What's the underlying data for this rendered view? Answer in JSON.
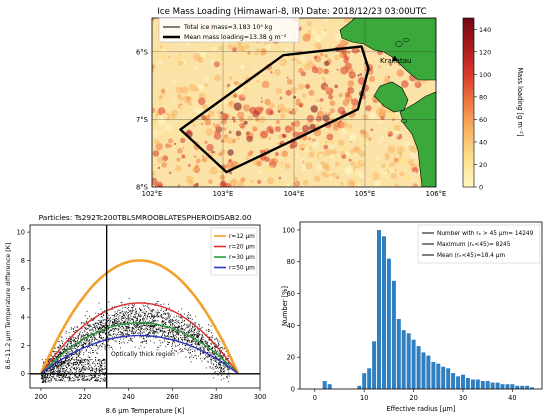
{
  "chart_data": [
    {
      "type": "heatmap",
      "title": "Ice Mass Loading (Himawari-8, IR)  Date: 2018/12/23  03:00UTC",
      "xticks": [
        "102°E",
        "103°E",
        "104°E",
        "105°E",
        "106°E"
      ],
      "yticks": [
        "6°S",
        "7°S",
        "8°S"
      ],
      "xlim": [
        102,
        106
      ],
      "ylim": [
        -8,
        -5.5
      ],
      "colorbar": {
        "label": "Mass loading [g m⁻²]",
        "ticks": [
          "0",
          "20",
          "40",
          "60",
          "80",
          "100",
          "120",
          "140"
        ],
        "range": [
          0,
          150
        ],
        "colors": [
          "#fff7c3",
          "#fde28a",
          "#f9b463",
          "#ef7a3f",
          "#d83a2b",
          "#a81a1d",
          "#6e0a15"
        ]
      },
      "legend": {
        "position": "upper-left",
        "entries": [
          {
            "label": "Total ice mass=3.183 10⁵ kg",
            "style": "thin"
          },
          {
            "label": "Mean mass loading=13.38 g m⁻²",
            "style": "thick"
          }
        ]
      },
      "annotations": [
        "Krakatau"
      ],
      "polygon_lonlat": [
        [
          102.4,
          -7.15
        ],
        [
          103.85,
          -6.05
        ],
        [
          104.95,
          -5.92
        ],
        [
          105.05,
          -6.25
        ],
        [
          104.9,
          -6.85
        ],
        [
          103.05,
          -7.78
        ]
      ],
      "volcano_lonlat": [
        105.42,
        -6.1
      ]
    },
    {
      "type": "scatter",
      "title": "Particles: Ts292Tc200TBLSMROOBLATESPHEROIDSAB2.00",
      "xlabel": "8.6 μm Temperature [K]",
      "ylabel": "8.6-11.2 μm Temperature difference [K]",
      "xticks": [
        "200",
        "220",
        "240",
        "260",
        "280",
        "300"
      ],
      "yticks": [
        "0",
        "2",
        "4",
        "6",
        "8",
        "10"
      ],
      "xlim": [
        195,
        300
      ],
      "ylim": [
        -1.0,
        10.5
      ],
      "vline_x": 230,
      "hline_y": 0,
      "annotation": "Optically thick region",
      "legend_position": "upper-right",
      "series": [
        {
          "name": "r=12 μm",
          "color": "#f2a12a",
          "apex_x": 245,
          "apex_y": 8.0
        },
        {
          "name": "r=20 μm",
          "color": "#e02e2e",
          "apex_x": 245,
          "apex_y": 5.0
        },
        {
          "name": "r=30 μm",
          "color": "#2a9a3a",
          "apex_x": 245,
          "apex_y": 3.6
        },
        {
          "name": "r=50 μm",
          "color": "#2a36c0",
          "apex_x": 245,
          "apex_y": 2.7
        }
      ],
      "curve_endpoints_x": [
        200,
        290
      ]
    },
    {
      "type": "bar",
      "xlabel": "Effective radius [μm]",
      "ylabel": "Number [%]",
      "xticks": [
        "0",
        "10",
        "20",
        "30",
        "40"
      ],
      "yticks": [
        "0",
        "20",
        "40",
        "60",
        "80",
        "100"
      ],
      "xlim": [
        -3,
        46
      ],
      "ylim": [
        0,
        105
      ],
      "bar_color": "#2f7fc1",
      "bar_width": 0.8,
      "bins_x": [
        2,
        3,
        9,
        10,
        11,
        12,
        13,
        14,
        15,
        16,
        17,
        18,
        19,
        20,
        21,
        22,
        23,
        24,
        25,
        26,
        27,
        28,
        29,
        30,
        31,
        32,
        33,
        34,
        35,
        36,
        37,
        38,
        39,
        40,
        41,
        42,
        43,
        44
      ],
      "values": [
        5,
        3,
        2,
        10,
        13,
        30,
        100,
        96,
        82,
        68,
        44,
        37,
        35,
        31,
        27,
        23,
        21,
        17,
        16,
        14,
        13,
        10,
        8,
        9,
        7,
        6,
        6,
        5,
        5,
        4,
        4,
        3,
        3,
        3,
        2,
        2,
        2,
        1
      ],
      "legend": {
        "position": "upper-right",
        "entries": [
          "Number with rₑ >  45 μm= 14249",
          "Maximum (rₑ<45)=  8245",
          "Mean (rₑ<45)=18.4 μm"
        ]
      }
    }
  ]
}
